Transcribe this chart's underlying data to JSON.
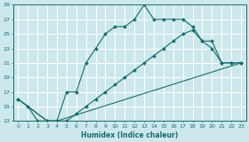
{
  "bg_color": "#cce8ec",
  "grid_color": "#ffffff",
  "line_color": "#1a6b6b",
  "xlabel": "Humidex (Indice chaleur)",
  "xlim": [
    -0.5,
    23.5
  ],
  "ylim": [
    13,
    29
  ],
  "yticks": [
    13,
    15,
    17,
    19,
    21,
    23,
    25,
    27,
    29
  ],
  "xticks": [
    0,
    1,
    2,
    3,
    4,
    5,
    6,
    7,
    8,
    9,
    10,
    11,
    12,
    13,
    14,
    15,
    16,
    17,
    18,
    19,
    20,
    21,
    22,
    23
  ],
  "line1_x": [
    0,
    1,
    2,
    3,
    4,
    5,
    6,
    7,
    8,
    9,
    10,
    11,
    12,
    13,
    14,
    15,
    16,
    17,
    18,
    19,
    20,
    21,
    22,
    23
  ],
  "line1_y": [
    16,
    15,
    13,
    13,
    13,
    17,
    17,
    21,
    23,
    25,
    26,
    26,
    27,
    29,
    27,
    27,
    27,
    27,
    26,
    24,
    23,
    21,
    21,
    21
  ],
  "line2_x": [
    0,
    3,
    4,
    5,
    6,
    7,
    8,
    9,
    10,
    11,
    12,
    13,
    14,
    15,
    16,
    17,
    18,
    19,
    20,
    21,
    22,
    23
  ],
  "line2_y": [
    16,
    13,
    13,
    13,
    14,
    15,
    16,
    17,
    18,
    19,
    20,
    21,
    22,
    23,
    24,
    25,
    25.5,
    24,
    24,
    21,
    21,
    21
  ],
  "line3_x": [
    0,
    3,
    4,
    23
  ],
  "line3_y": [
    16,
    13,
    13,
    21
  ]
}
